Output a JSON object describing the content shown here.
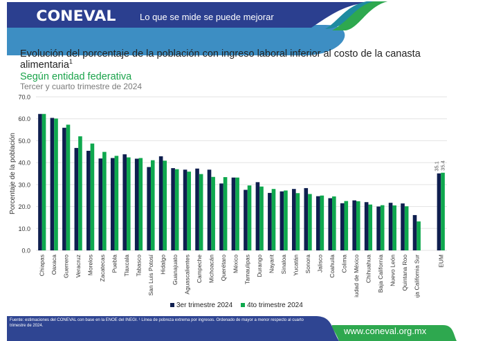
{
  "header": {
    "logo": "CONEVAL",
    "tagline": "Lo que se mide se puede mejorar"
  },
  "title": "Evolución del porcentaje de la población con ingreso laboral inferior al costo de la canasta alimentaria",
  "title_sup": "1",
  "subtitle": "Según entidad federativa",
  "period": "Tercer y cuarto trimestre de 2024",
  "colors": {
    "series1": "#0f1f4f",
    "series2": "#0fa84e",
    "brand_blue": "#2b3f8f",
    "light_blue": "#3d8ec3",
    "green": "#2ea84f"
  },
  "chart_data": {
    "type": "bar",
    "ylabel": "Porcentaje de la población",
    "xlabel": "",
    "ylim": [
      0,
      70
    ],
    "yticks": [
      "0.0",
      "10.0",
      "20.0",
      "30.0",
      "40.0",
      "50.0",
      "60.0",
      "70.0"
    ],
    "grid": true,
    "legend_position": "bottom",
    "categories": [
      "Chiapas",
      "Oaxaca",
      "Guerrero",
      "Veracruz",
      "Morelos",
      "Zacatecas",
      "Puebla",
      "Tlaxcala",
      "Tabasco",
      "San Luis Potosí",
      "Hidalgo",
      "Guanajuato",
      "Aguascalientes",
      "Campeche",
      "Michoacán",
      "Querétaro",
      "México",
      "Tamaulipas",
      "Durango",
      "Nayarit",
      "Sinaloa",
      "Yucatán",
      "Sonora",
      "Jalisco",
      "Coahuila",
      "Colima",
      "Ciudad de México",
      "Chihuahua",
      "Baja California",
      "Nuevo León",
      "Quintana Roo",
      "Baja California Sur",
      "EUM"
    ],
    "series": [
      {
        "name": "3er trimestre 2024",
        "values": [
          62.2,
          60.4,
          55.9,
          46.7,
          45.4,
          41.9,
          42.1,
          43.8,
          41.8,
          38.0,
          42.9,
          37.5,
          36.8,
          37.3,
          36.8,
          30.5,
          33.2,
          27.6,
          31.1,
          26.2,
          26.9,
          28.0,
          28.4,
          24.7,
          23.8,
          21.5,
          22.8,
          22.0,
          20.0,
          21.7,
          21.4,
          16.1,
          35.1
        ]
      },
      {
        "name": "4to trimestre 2024",
        "values": [
          62.2,
          60.1,
          57.3,
          52.0,
          48.7,
          44.9,
          43.1,
          42.4,
          42.1,
          41.1,
          40.9,
          37.0,
          35.9,
          34.8,
          33.5,
          33.4,
          33.2,
          29.6,
          29.1,
          28.0,
          27.3,
          26.1,
          25.7,
          25.0,
          24.6,
          22.5,
          22.4,
          20.9,
          20.6,
          20.5,
          20.1,
          13.2,
          35.4
        ]
      }
    ],
    "data_labels": {
      "EUM": [
        "35.1",
        "35.4"
      ]
    }
  },
  "footer": {
    "source": "Fuente: estimaciones del CONEVAL con base en la ENOE del INEGI. ¹ Línea de pobreza extrema por ingresos. Ordenado de mayor a menor respecto al cuarto trimestre de 2024.",
    "url": "www.coneval.org.mx"
  }
}
